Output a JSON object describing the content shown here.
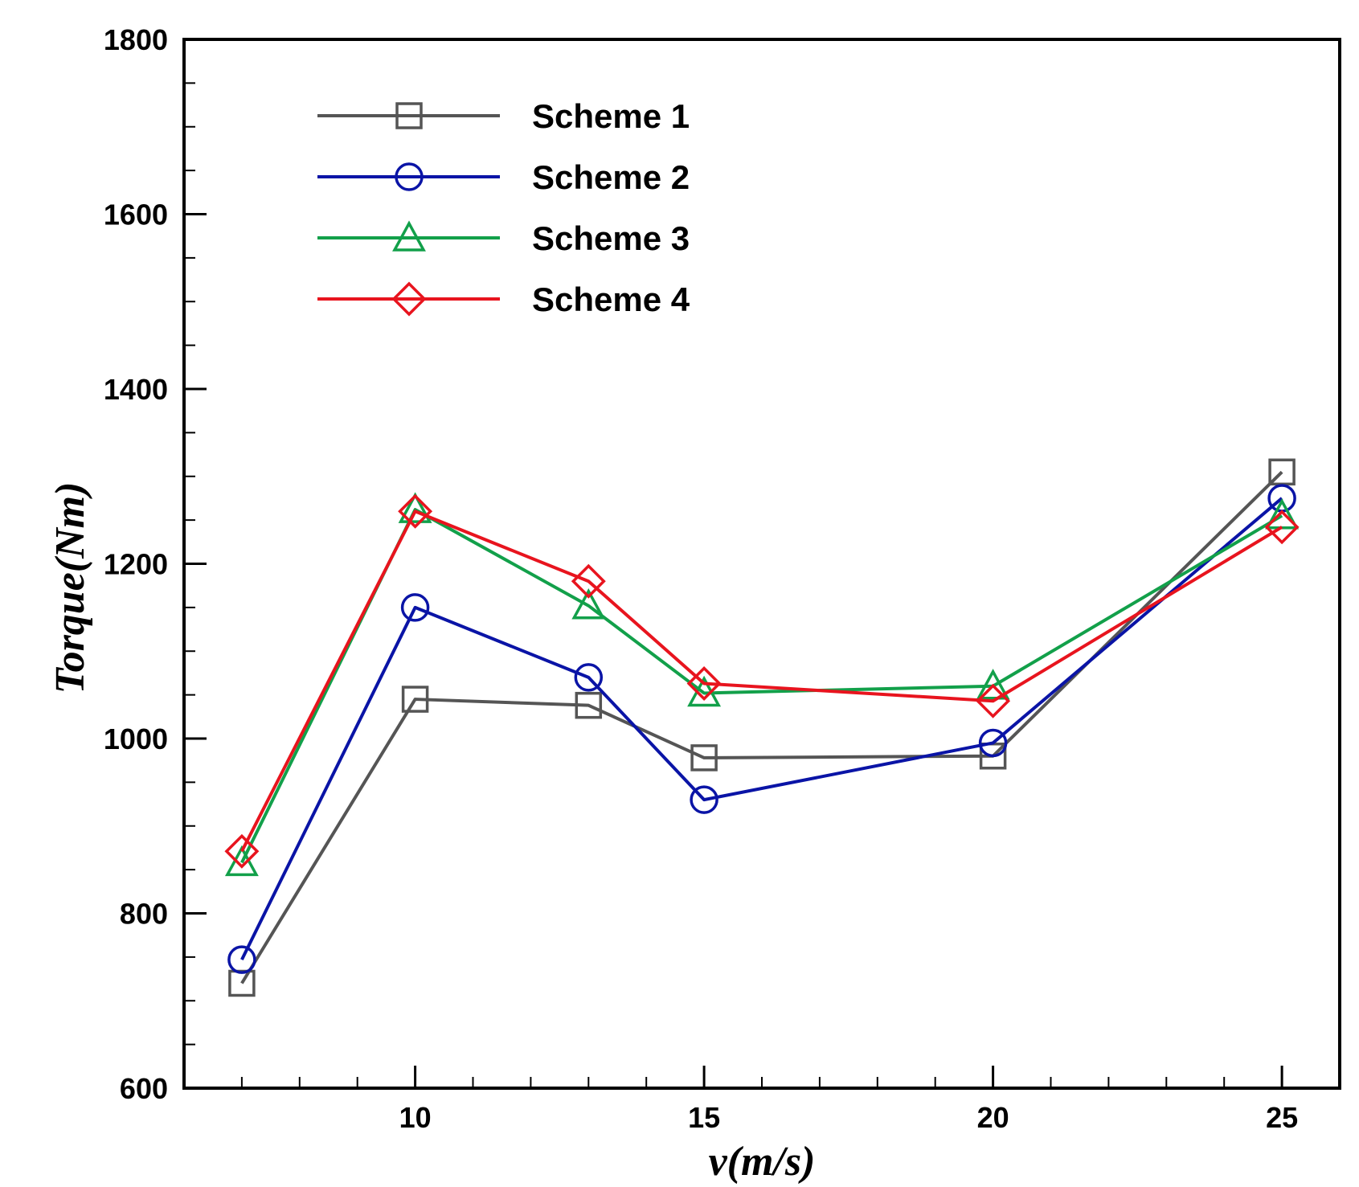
{
  "chart_data": {
    "type": "line",
    "title": "",
    "xlabel": "v(m/s)",
    "ylabel": "Torque(Nm)",
    "xlim": [
      6,
      26
    ],
    "ylim": [
      600,
      1800
    ],
    "xticks": [
      10,
      15,
      20,
      25
    ],
    "yticks": [
      600,
      800,
      1000,
      1200,
      1400,
      1600,
      1800
    ],
    "x_minor_step": 1,
    "y_minor_step": 50,
    "x": [
      7,
      10,
      13,
      15,
      20,
      25
    ],
    "legend_position": "top-left",
    "grid": false,
    "series": [
      {
        "name": "Scheme 1",
        "marker": "square",
        "color": "#555555",
        "values": [
          720,
          1045,
          1038,
          978,
          980,
          1305
        ]
      },
      {
        "name": "Scheme 2",
        "marker": "circle",
        "color": "#0a14a6",
        "values": [
          747,
          1150,
          1070,
          930,
          995,
          1275
        ]
      },
      {
        "name": "Scheme 3",
        "marker": "triangle",
        "color": "#12a04a",
        "values": [
          858,
          1262,
          1152,
          1052,
          1060,
          1255
        ]
      },
      {
        "name": "Scheme 4",
        "marker": "diamond",
        "color": "#e8141e",
        "values": [
          871,
          1260,
          1180,
          1063,
          1043,
          1242
        ]
      }
    ]
  }
}
